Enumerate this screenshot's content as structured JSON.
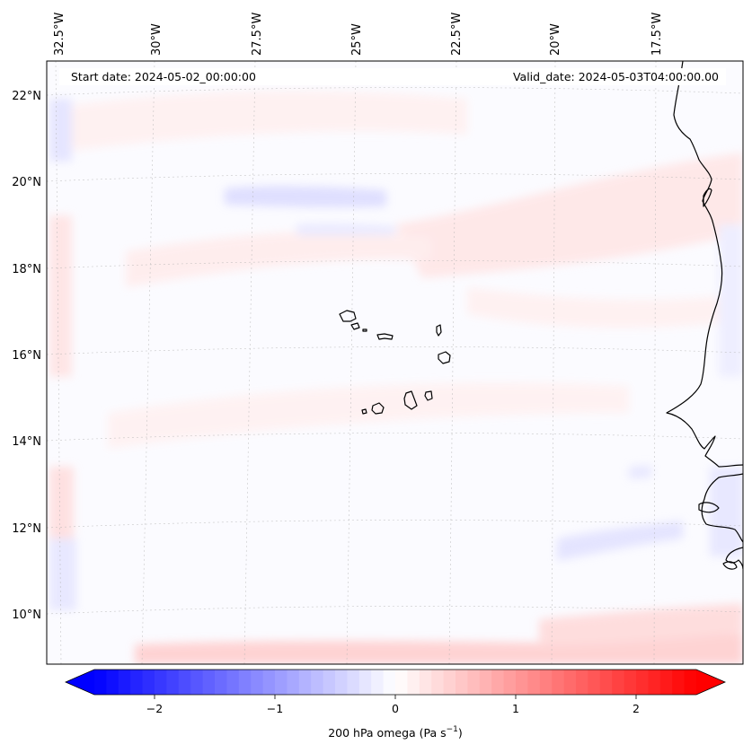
{
  "header": {
    "start_date": "Start date: 2024-05-02_00:00:00",
    "valid_date": "Valid_date: 2024-05-03T04:00:00.00"
  },
  "map": {
    "lon_labels": [
      "32.5°W",
      "30°W",
      "27.5°W",
      "25°W",
      "22.5°W",
      "20°W",
      "17.5°W"
    ],
    "lat_labels": [
      "22°N",
      "20°N",
      "18°N",
      "16°N",
      "14°N",
      "12°N",
      "10°N"
    ],
    "coastline_color": "#000000",
    "gridline_color": "#b0b0b0"
  },
  "colorbar": {
    "label_main": "200 hPa omega (Pa s",
    "label_exp": "−1",
    "label_close": ")",
    "tick_labels": [
      "−2",
      "−1",
      "0",
      "1",
      "2"
    ],
    "tick_values": [
      -2,
      -1,
      0,
      1,
      2
    ],
    "range": [
      -2.5,
      2.5
    ],
    "colormap": "bwr",
    "min_color": "#0000ff",
    "mid_color": "#ffffff",
    "max_color": "#ff0000",
    "extend": "both"
  }
}
